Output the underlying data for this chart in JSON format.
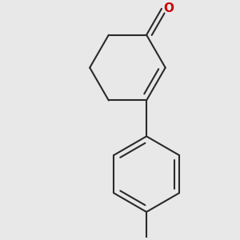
{
  "background_color": "#e8e8e8",
  "bond_color": "#2a2a2a",
  "oxygen_color": "#cc0000",
  "line_width": 1.5,
  "figsize": [
    3.0,
    3.0
  ],
  "dpi": 100,
  "xlim": [
    -1.0,
    1.0
  ],
  "ylim": [
    -1.35,
    1.1
  ]
}
